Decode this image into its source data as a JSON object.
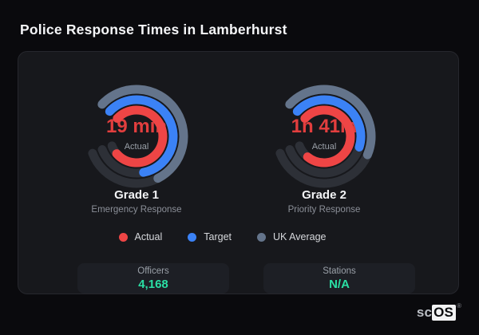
{
  "header": {
    "title": "Police Response Times in Lamberhurst"
  },
  "chart_data": {
    "type": "gauge",
    "title": "Police Response Times in Lamberhurst",
    "legend_position": "bottom",
    "track_color": "#2d3037",
    "ring_stroke_width": 11,
    "legend": [
      {
        "label": "Actual",
        "color": "#ee4545"
      },
      {
        "label": "Target",
        "color": "#3b82f6"
      },
      {
        "label": "UK Average",
        "color": "#64748b"
      }
    ],
    "gauges": [
      {
        "name": "Grade 1",
        "subtitle": "Emergency Response",
        "value_text": "19 min",
        "value_label": "Actual",
        "value_color": "#e23e3e",
        "start_deg": -47,
        "track_sweep_deg": 296,
        "rings": [
          {
            "series": "UK Average",
            "color": "#64748b",
            "radius": 59,
            "sweep_deg": 200
          },
          {
            "series": "Target",
            "color": "#3b82f6",
            "radius": 46,
            "sweep_deg": 216
          },
          {
            "series": "Actual",
            "color": "#ee4545",
            "radius": 33,
            "sweep_deg": 276
          }
        ]
      },
      {
        "name": "Grade 2",
        "subtitle": "Priority Response",
        "value_text": "1h 41m",
        "value_label": "Actual",
        "value_color": "#e23e3e",
        "start_deg": -47,
        "track_sweep_deg": 296,
        "rings": [
          {
            "series": "UK Average",
            "color": "#64748b",
            "radius": 59,
            "sweep_deg": 160
          },
          {
            "series": "Target",
            "color": "#3b82f6",
            "radius": 46,
            "sweep_deg": 154
          },
          {
            "series": "Actual",
            "color": "#ee4545",
            "radius": 33,
            "sweep_deg": 266
          }
        ]
      }
    ]
  },
  "stats": [
    {
      "label": "Officers",
      "value": "4,168"
    },
    {
      "label": "Stations",
      "value": "N/A"
    }
  ],
  "footer": {
    "logo_prefix": "sc",
    "logo_suffix": "OS",
    "logo_mark": "®"
  },
  "colors": {
    "page_bg": "#0a0a0d",
    "card_bg": "#17181c",
    "stat_value": "#2adfa4",
    "value_red": "#e23e3e"
  }
}
